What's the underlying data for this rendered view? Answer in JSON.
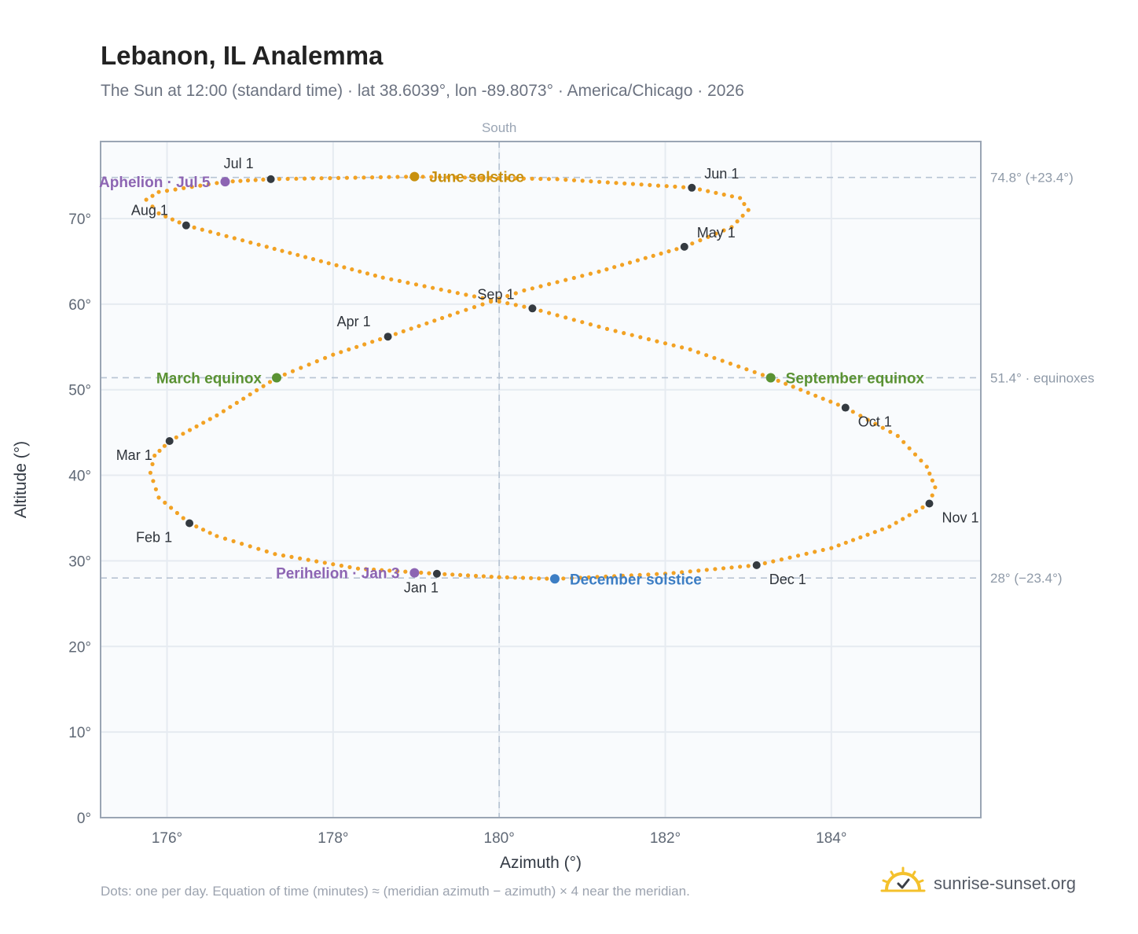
{
  "title": "Lebanon, IL Analemma",
  "subtitle": "The Sun at 12:00 (standard time) · lat 38.6039°, lon -89.8073° · America/Chicago · 2026",
  "footnote": "Dots: one per day. Equation of time (minutes) ≈ (meridian azimuth − azimuth) × 4 near the meridian.",
  "brand": {
    "name": "sunrise-sunset.org",
    "logo_icon": "sun-logo-icon"
  },
  "colors": {
    "path": "#f2a224",
    "month_marker": "#343a40",
    "june_solstice": "#c8900e",
    "december_solstice": "#3d7ec4",
    "equinox": "#5a9233",
    "perihelion_aphelion": "#8d65b3",
    "reference_line": "#b7c4d3",
    "plot_bg": "#f9fbfd",
    "grid": "#e6ebf1",
    "frame": "#9aa5b4"
  },
  "chart_data": {
    "type": "scatter",
    "xlabel": "Azimuth (°)",
    "ylabel": "Altitude (°)",
    "xlim": [
      175.2,
      185.8
    ],
    "ylim": [
      0,
      79
    ],
    "x_ticks": [
      {
        "value": 176,
        "label": "176°"
      },
      {
        "value": 178,
        "label": "178°"
      },
      {
        "value": 180,
        "label": "180°"
      },
      {
        "value": 182,
        "label": "182°"
      },
      {
        "value": 184,
        "label": "184°"
      }
    ],
    "y_ticks": [
      {
        "value": 0,
        "label": "0°"
      },
      {
        "value": 10,
        "label": "10°"
      },
      {
        "value": 20,
        "label": "20°"
      },
      {
        "value": 30,
        "label": "30°"
      },
      {
        "value": 40,
        "label": "40°"
      },
      {
        "value": 50,
        "label": "50°"
      },
      {
        "value": 60,
        "label": "60°"
      },
      {
        "value": 70,
        "label": "70°"
      }
    ],
    "grid": true,
    "vertical_reference": {
      "x": 180,
      "label": "South"
    },
    "horizontal_references": [
      {
        "y": 74.8,
        "label": "74.8° (+23.4°)"
      },
      {
        "y": 51.4,
        "label": "51.4° · equinoxes"
      },
      {
        "y": 28,
        "label": "28° (−23.4°)"
      }
    ],
    "month_markers": [
      {
        "label": "Jan 1",
        "x": 179.25,
        "y": 28.5
      },
      {
        "label": "Feb 1",
        "x": 176.27,
        "y": 34.4
      },
      {
        "label": "Mar 1",
        "x": 176.03,
        "y": 44.0
      },
      {
        "label": "Apr 1",
        "x": 178.66,
        "y": 56.2
      },
      {
        "label": "May 1",
        "x": 182.23,
        "y": 66.7
      },
      {
        "label": "Jun 1",
        "x": 182.32,
        "y": 73.6
      },
      {
        "label": "Jul 1",
        "x": 177.25,
        "y": 74.6
      },
      {
        "label": "Aug 1",
        "x": 176.23,
        "y": 69.2
      },
      {
        "label": "Sep 1",
        "x": 180.4,
        "y": 59.5
      },
      {
        "label": "Oct 1",
        "x": 184.17,
        "y": 47.9
      },
      {
        "label": "Nov 1",
        "x": 185.18,
        "y": 36.7
      },
      {
        "label": "Dec 1",
        "x": 183.1,
        "y": 29.5
      }
    ],
    "events": [
      {
        "label": "June solstice",
        "x": 178.98,
        "y": 74.9,
        "color_key": "june_solstice"
      },
      {
        "label": "December solstice",
        "x": 180.67,
        "y": 27.9,
        "color_key": "december_solstice"
      },
      {
        "label": "March equinox",
        "x": 177.32,
        "y": 51.4,
        "color_key": "equinox"
      },
      {
        "label": "September equinox",
        "x": 183.27,
        "y": 51.4,
        "color_key": "equinox"
      },
      {
        "label": "Perihelion · Jan 3",
        "x": 178.98,
        "y": 28.6,
        "color_key": "perihelion_aphelion"
      },
      {
        "label": "Aphelion · Jul 5",
        "x": 176.7,
        "y": 74.3,
        "color_key": "perihelion_aphelion"
      }
    ],
    "series": [
      {
        "points": [
          [
            179.25,
            28.5
          ],
          [
            178.3,
            29.1
          ],
          [
            177.3,
            30.8
          ],
          [
            176.6,
            32.9
          ],
          [
            176.27,
            34.4
          ],
          [
            175.9,
            37.4
          ],
          [
            175.8,
            40.3
          ],
          [
            175.85,
            42.3
          ],
          [
            176.03,
            44.0
          ],
          [
            176.6,
            47.0
          ],
          [
            177.32,
            51.4
          ],
          [
            178.0,
            54.1
          ],
          [
            178.66,
            56.2
          ],
          [
            179.5,
            59.0
          ],
          [
            180.3,
            61.6
          ],
          [
            181.2,
            63.8
          ],
          [
            182.23,
            66.7
          ],
          [
            182.8,
            69.0
          ],
          [
            183.0,
            71.0
          ],
          [
            182.9,
            72.4
          ],
          [
            182.32,
            73.6
          ],
          [
            180.7,
            74.6
          ],
          [
            178.98,
            74.9
          ],
          [
            177.25,
            74.6
          ],
          [
            176.7,
            74.3
          ],
          [
            175.9,
            73.1
          ],
          [
            175.75,
            72.2
          ],
          [
            175.9,
            70.6
          ],
          [
            176.23,
            69.2
          ],
          [
            177.2,
            66.7
          ],
          [
            178.6,
            63.1
          ],
          [
            180.4,
            59.5
          ],
          [
            181.3,
            57.1
          ],
          [
            182.3,
            54.7
          ],
          [
            183.27,
            51.4
          ],
          [
            184.17,
            47.9
          ],
          [
            184.8,
            44.6
          ],
          [
            185.15,
            41.0
          ],
          [
            185.25,
            38.6
          ],
          [
            185.18,
            36.7
          ],
          [
            184.7,
            34.0
          ],
          [
            184.0,
            31.5
          ],
          [
            183.1,
            29.5
          ],
          [
            182.0,
            28.5
          ],
          [
            180.67,
            27.9
          ],
          [
            180.0,
            28.1
          ],
          [
            179.25,
            28.5
          ]
        ]
      }
    ]
  }
}
